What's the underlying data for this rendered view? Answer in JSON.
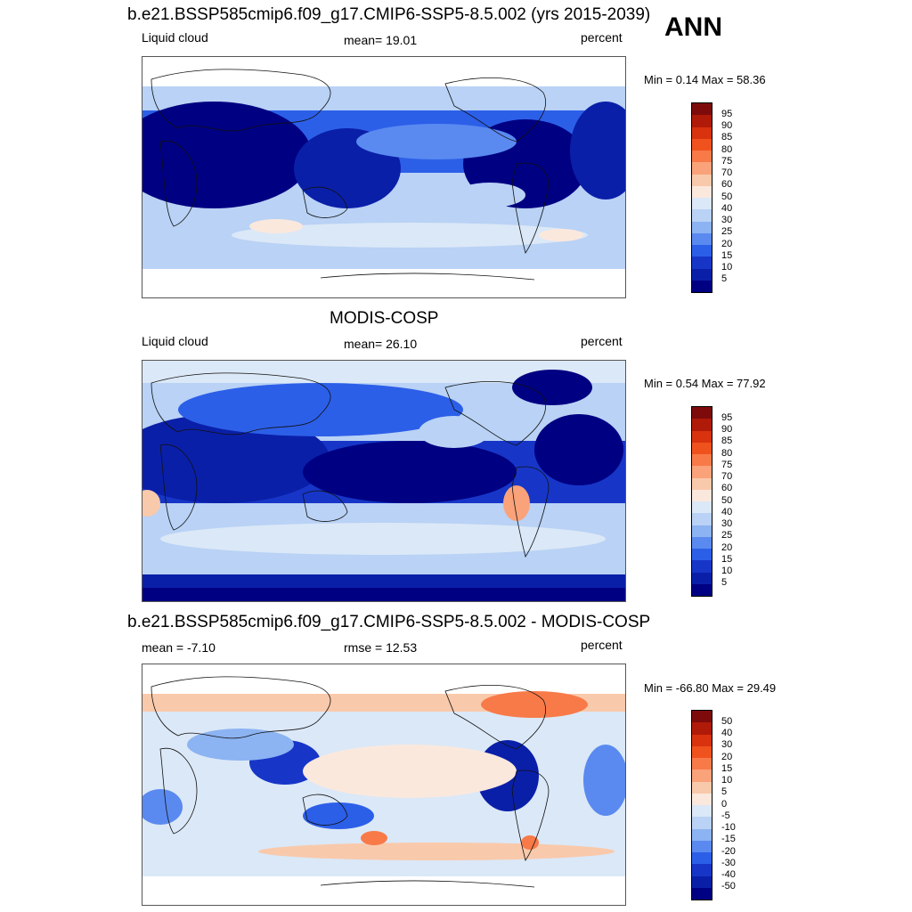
{
  "season": "ANN",
  "panels": [
    {
      "title": "b.e21.BSSP585cmip6.f09_g17.CMIP6-SSP5-8.5.002 (yrs 2015-2039)",
      "left_label": "Liquid cloud",
      "center_label": "mean=  19.01",
      "right_label": "percent",
      "minmax": "Min =   0.14 Max =  58.36",
      "colorbar_labels": [
        "95",
        "90",
        "85",
        "80",
        "75",
        "70",
        "60",
        "50",
        "40",
        "30",
        "25",
        "20",
        "15",
        "10",
        "5"
      ],
      "colorbar_colors": [
        "#7d0b0b",
        "#b01a08",
        "#d8320e",
        "#f0521e",
        "#f87a48",
        "#faa27a",
        "#f9c9ab",
        "#fbe8dd",
        "#dbe8f7",
        "#b9d2f5",
        "#8cb3f2",
        "#5a8af0",
        "#2c5fe8",
        "#1736c8",
        "#0a1fa8",
        "#000082"
      ],
      "minmax_values": {
        "min": 0.14,
        "max": 58.36,
        "mean": 19.01
      }
    },
    {
      "title": "MODIS-COSP",
      "left_label": "Liquid cloud",
      "center_label": "mean=  26.10",
      "right_label": "percent",
      "minmax": "Min =   0.54 Max =  77.92",
      "colorbar_labels": [
        "95",
        "90",
        "85",
        "80",
        "75",
        "70",
        "60",
        "50",
        "40",
        "30",
        "25",
        "20",
        "15",
        "10",
        "5"
      ],
      "colorbar_colors": [
        "#7d0b0b",
        "#b01a08",
        "#d8320e",
        "#f0521e",
        "#f87a48",
        "#faa27a",
        "#f9c9ab",
        "#fbe8dd",
        "#dbe8f7",
        "#b9d2f5",
        "#8cb3f2",
        "#5a8af0",
        "#2c5fe8",
        "#1736c8",
        "#0a1fa8",
        "#000082"
      ],
      "minmax_values": {
        "min": 0.54,
        "max": 77.92,
        "mean": 26.1
      }
    },
    {
      "title": "b.e21.BSSP585cmip6.f09_g17.CMIP6-SSP5-8.5.002 - MODIS-COSP",
      "left_label": "mean =  -7.10",
      "center_label": "rmse =  12.53",
      "right_label": "percent",
      "minmax": "Min = -66.80 Max =  29.49",
      "colorbar_labels": [
        "50",
        "40",
        "30",
        "20",
        "15",
        "10",
        "5",
        "0",
        "-5",
        "-10",
        "-15",
        "-20",
        "-30",
        "-40",
        "-50"
      ],
      "colorbar_colors": [
        "#7d0b0b",
        "#b01a08",
        "#d8320e",
        "#f0521e",
        "#f87a48",
        "#faa27a",
        "#f9c9ab",
        "#fbe8dd",
        "#dbe8f7",
        "#b9d2f5",
        "#8cb3f2",
        "#5a8af0",
        "#2c5fe8",
        "#1736c8",
        "#0a1fa8",
        "#000082"
      ],
      "minmax_values": {
        "min": -66.8,
        "max": 29.49,
        "mean": -7.1,
        "rmse": 12.53
      }
    }
  ],
  "chart_data": [
    {
      "type": "heatmap",
      "title": "b.e21.BSSP585cmip6.f09_g17.CMIP6-SSP5-8.5.002 (yrs 2015-2039)",
      "variable": "Liquid cloud",
      "units": "percent",
      "mean": 19.01,
      "min": 0.14,
      "max": 58.36,
      "levels": [
        5,
        10,
        15,
        20,
        25,
        30,
        40,
        50,
        60,
        70,
        75,
        80,
        85,
        90,
        95
      ]
    },
    {
      "type": "heatmap",
      "title": "MODIS-COSP",
      "variable": "Liquid cloud",
      "units": "percent",
      "mean": 26.1,
      "min": 0.54,
      "max": 77.92,
      "levels": [
        5,
        10,
        15,
        20,
        25,
        30,
        40,
        50,
        60,
        70,
        75,
        80,
        85,
        90,
        95
      ]
    },
    {
      "type": "heatmap",
      "title": "b.e21.BSSP585cmip6.f09_g17.CMIP6-SSP5-8.5.002 - MODIS-COSP",
      "units": "percent",
      "mean": -7.1,
      "rmse": 12.53,
      "min": -66.8,
      "max": 29.49,
      "levels": [
        -50,
        -40,
        -30,
        -20,
        -15,
        -10,
        -5,
        0,
        5,
        10,
        15,
        20,
        30,
        40,
        50
      ]
    }
  ]
}
